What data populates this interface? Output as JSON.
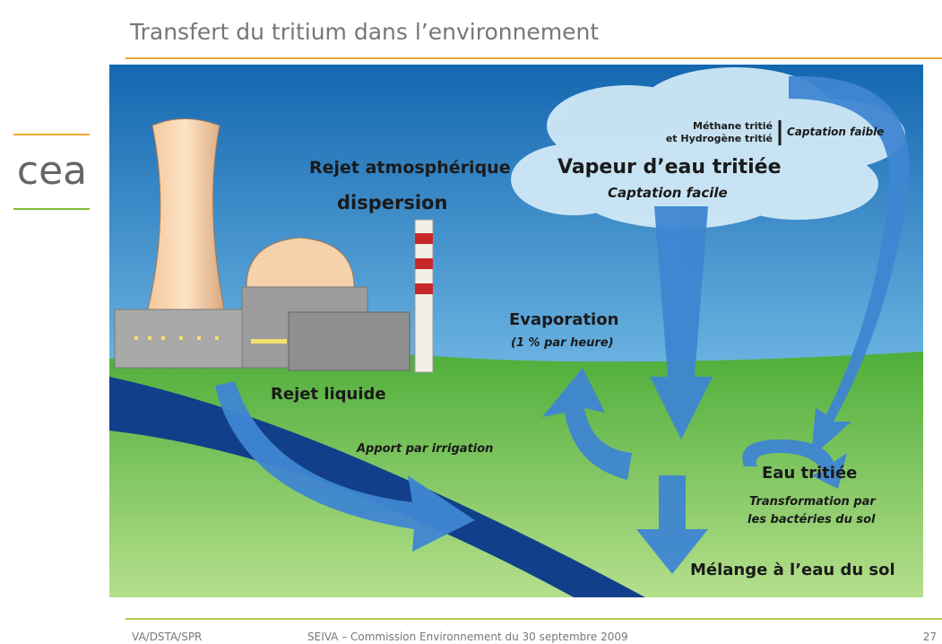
{
  "header": {
    "title": "Transfert du tritium dans l’environnement"
  },
  "logo": {
    "text": "cea"
  },
  "diagram": {
    "methane": "Méthane tritié",
    "hydrogen": "et Hydrogène tritié",
    "weak_capture": "Captation faible",
    "atmospheric_release": "Rejet atmosphérique",
    "dispersion": "dispersion",
    "vapour": "Vapeur d’eau tritiée",
    "easy_capture": "Captation facile",
    "evaporation": "Evaporation",
    "evaporation_rate": "(1 % par heure)",
    "liquid_release": "Rejet liquide",
    "irrigation": "Apport par irrigation",
    "tritiated_water": "Eau tritiée",
    "transformation_1": "Transformation par",
    "transformation_2": "les bactéries du sol",
    "soil_mixing": "Mélange à l’eau du sol"
  },
  "footer": {
    "left": "VA/DSTA/SPR",
    "center": "SEIVA – Commission Environnement du 30 septembre 2009",
    "page": "27"
  }
}
